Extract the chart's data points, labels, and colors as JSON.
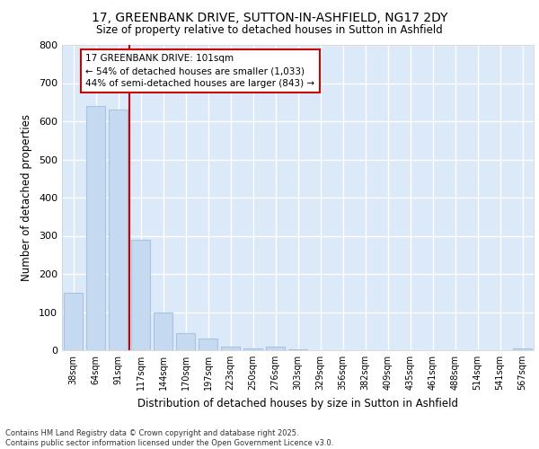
{
  "title1": "17, GREENBANK DRIVE, SUTTON-IN-ASHFIELD, NG17 2DY",
  "title2": "Size of property relative to detached houses in Sutton in Ashfield",
  "xlabel": "Distribution of detached houses by size in Sutton in Ashfield",
  "ylabel": "Number of detached properties",
  "categories": [
    "38sqm",
    "64sqm",
    "91sqm",
    "117sqm",
    "144sqm",
    "170sqm",
    "197sqm",
    "223sqm",
    "250sqm",
    "276sqm",
    "303sqm",
    "329sqm",
    "356sqm",
    "382sqm",
    "409sqm",
    "435sqm",
    "461sqm",
    "488sqm",
    "514sqm",
    "541sqm",
    "567sqm"
  ],
  "values": [
    150,
    640,
    630,
    290,
    100,
    45,
    30,
    10,
    5,
    10,
    3,
    0,
    0,
    0,
    0,
    0,
    0,
    0,
    0,
    0,
    5
  ],
  "bar_color": "#c5d9f0",
  "bar_edge_color": "#a8c4e0",
  "property_line_x": 2.5,
  "property_line_color": "#cc0000",
  "annotation_text": "17 GREENBANK DRIVE: 101sqm\n← 54% of detached houses are smaller (1,033)\n44% of semi-detached houses are larger (843) →",
  "annotation_box_color": "#ffffff",
  "annotation_box_edge_color": "#cc0000",
  "ylim": [
    0,
    800
  ],
  "yticks": [
    0,
    100,
    200,
    300,
    400,
    500,
    600,
    700,
    800
  ],
  "plot_bg_color": "#dce9f8",
  "fig_bg_color": "#ffffff",
  "footer_text": "Contains HM Land Registry data © Crown copyright and database right 2025.\nContains public sector information licensed under the Open Government Licence v3.0.",
  "grid_color": "#ffffff"
}
